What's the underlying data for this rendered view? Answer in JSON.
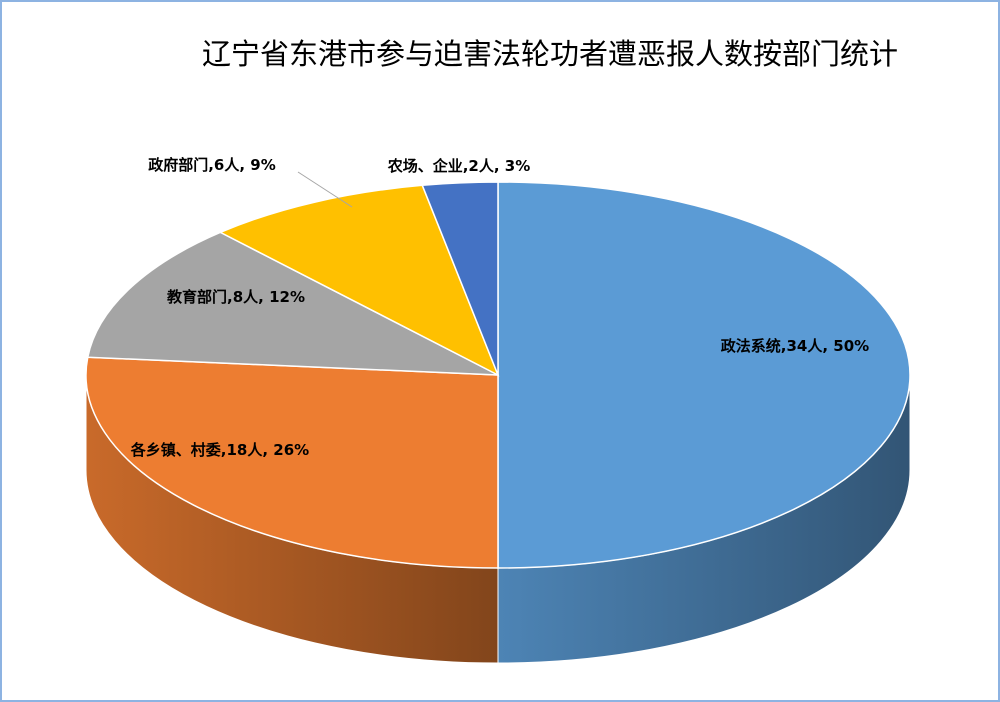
{
  "chart_data": {
    "type": "pie3d",
    "title": "辽宁省东港市参与迫害法轮功者遭恶报人数按部门统计",
    "values": [
      34,
      18,
      8,
      6,
      2
    ],
    "value_labels": [
      "政法系统,34人, 50%",
      "各乡镇、村委,18人, 26%",
      "教育部门,8人, 12%",
      "政府部门,6人, 9%",
      "农场、企业,2人, 3%"
    ],
    "colors": [
      "#5b9bd5",
      "#ed7d31",
      "#a5a5a5",
      "#ffc000",
      "#4472c4"
    ]
  }
}
